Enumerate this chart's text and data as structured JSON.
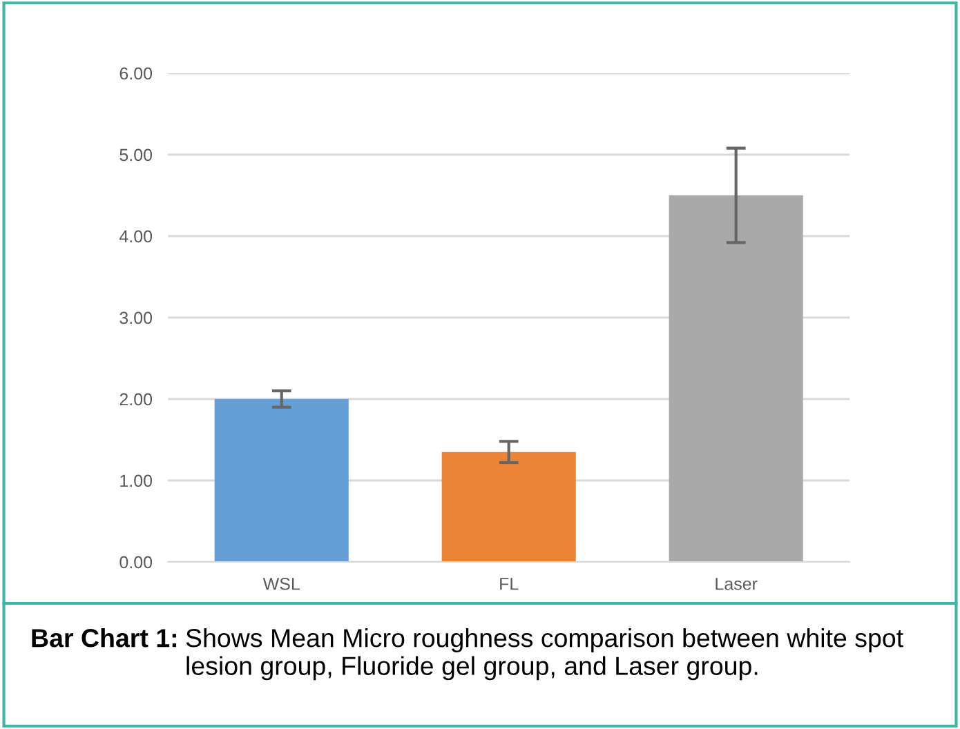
{
  "chart_data": {
    "type": "bar",
    "categories": [
      "WSL",
      "FL",
      "Laser"
    ],
    "values": [
      2.0,
      1.35,
      4.5
    ],
    "errors": [
      0.1,
      0.13,
      0.58
    ],
    "colors": [
      "#659fd6",
      "#ed8537",
      "#a9a9a9"
    ],
    "ylim": [
      0,
      6
    ],
    "yticks": [
      {
        "value": 0,
        "label": "0.00"
      },
      {
        "value": 1,
        "label": "1.00"
      },
      {
        "value": 2,
        "label": "2.00"
      },
      {
        "value": 3,
        "label": "3.00"
      },
      {
        "value": 4,
        "label": "4.00"
      },
      {
        "value": 5,
        "label": "5.00"
      },
      {
        "value": 6,
        "label": "6.00"
      }
    ],
    "grid": "y",
    "legend": false,
    "annotations": [
      "Bar Chart 1:",
      "Shows Mean Micro roughness comparison between white spot lesion group, Fluoride gel group, and Laser group."
    ]
  }
}
